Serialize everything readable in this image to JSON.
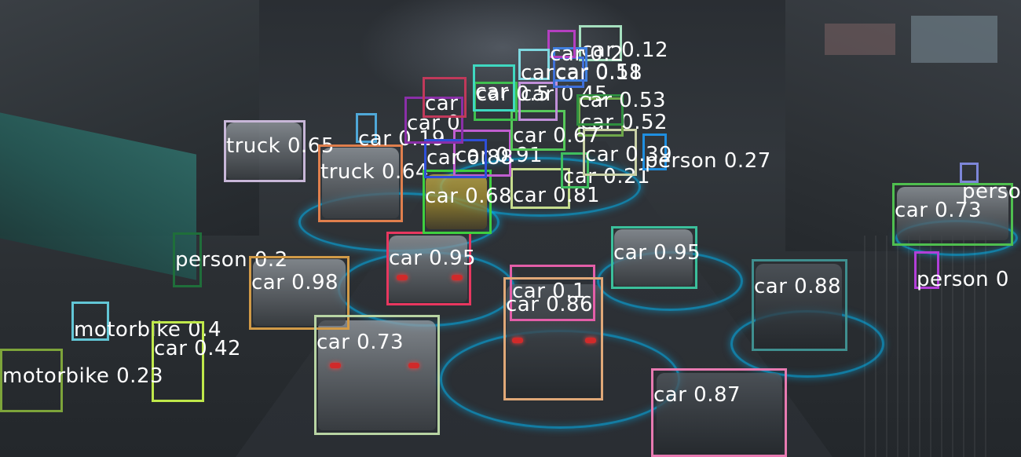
{
  "detections": [
    {
      "label": "truck 0.65",
      "color": "#c8b7d8"
    },
    {
      "label": "truck 0.64",
      "color": "#e07f4d"
    },
    {
      "label": "car 0.19",
      "color": "#4fa8d8"
    },
    {
      "label": "person 0.2",
      "color": "#1f6e3a"
    },
    {
      "label": "car 0.98",
      "color": "#d19a47"
    },
    {
      "label": "car 0.95",
      "color": "#e8375f"
    },
    {
      "label": "car 0.95",
      "color": "#3bbf9b"
    },
    {
      "label": "car 0.88",
      "color": "#3f8f8f"
    },
    {
      "label": "car 0.73",
      "color": "#4fbf4f"
    },
    {
      "label": "person 0",
      "color": "#b23fd8"
    },
    {
      "label": "person",
      "color": "#7d86d8"
    },
    {
      "label": "motorbike 0.4",
      "color": "#62c6d6"
    },
    {
      "label": "car 0.42",
      "color": "#bfe84a"
    },
    {
      "label": "motorbike 0.23",
      "color": "#7da43a"
    },
    {
      "label": "car 0.73",
      "color": "#b8d4a3"
    },
    {
      "label": "car 0.1",
      "color": "#e35ea8"
    },
    {
      "label": "car 0.86",
      "color": "#e0a878"
    },
    {
      "label": "car 0.87",
      "color": "#e87ab1"
    },
    {
      "label": "car 0.68",
      "color": "#3fcf3f"
    },
    {
      "label": "car 0.81",
      "color": "#c6dc8e"
    },
    {
      "label": "car 0.21",
      "color": "#3fbf5f"
    },
    {
      "label": "person 0.27",
      "color": "#1f8fe0"
    },
    {
      "label": "car 0.39",
      "color": "#c9d1a6"
    },
    {
      "label": "car 0.52",
      "color": "#6fa84a"
    },
    {
      "label": "car 0.91",
      "color": "#c05ed0"
    },
    {
      "label": "car 0.67",
      "color": "#57c85a"
    },
    {
      "label": "car 0.88",
      "color": "#2e4fd8"
    },
    {
      "label": "car 0",
      "color": "#8a2fa8"
    },
    {
      "label": "car 0.45",
      "color": "#bf8fd8"
    },
    {
      "label": "car 0.5",
      "color": "#3fbf4f"
    },
    {
      "label": "car",
      "color": "#3fd8c0"
    },
    {
      "label": "car",
      "color": "#c0395a"
    },
    {
      "label": "car 0.12",
      "color": "#a6e0bf"
    },
    {
      "label": "car 0.51",
      "color": "#3f7fe0"
    },
    {
      "label": "car 0.18",
      "color": "#3f6fd8"
    },
    {
      "label": "car 0.2",
      "color": "#b43fc0"
    },
    {
      "label": "car",
      "color": "#7fd8e0"
    },
    {
      "label": "car 0.53",
      "color": "#2f8f3f"
    }
  ]
}
